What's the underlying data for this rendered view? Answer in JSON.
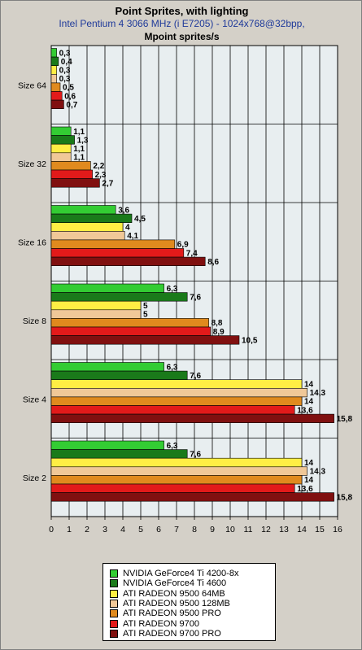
{
  "chart_data": {
    "type": "bar",
    "orientation": "horizontal",
    "title": "Point Sprites, with lighting",
    "subtitle": "Intel Pentium 4 3066 MHz (i E7205) - 1024x768@32bpp,",
    "ylabel": "Mpoint sprites/s",
    "categories": [
      "Size 64",
      "Size 32",
      "Size 16",
      "Size 8",
      "Size 4",
      "Size 2"
    ],
    "xlim": [
      0,
      16
    ],
    "xticks": [
      0,
      1,
      2,
      3,
      4,
      5,
      6,
      7,
      8,
      9,
      10,
      11,
      12,
      13,
      14,
      15,
      16
    ],
    "grid": true,
    "legend_position": "bottom",
    "series": [
      {
        "name": "NVIDIA GeForce4 Ti 4200-8x",
        "color": "#33cc33",
        "values": [
          0.3,
          1.1,
          3.6,
          6.3,
          6.3,
          6.3
        ],
        "labels": [
          "0,3",
          "1,1",
          "3,6",
          "6,3",
          "6,3",
          "6,3"
        ]
      },
      {
        "name": "NVIDIA GeForce4 Ti 4600",
        "color": "#1a7a1a",
        "values": [
          0.4,
          1.3,
          4.5,
          7.6,
          7.6,
          7.6
        ],
        "labels": [
          "0,4",
          "1,3",
          "4,5",
          "7,6",
          "7,6",
          "7,6"
        ]
      },
      {
        "name": "ATI RADEON 9500 64MB",
        "color": "#ffee44",
        "values": [
          0.3,
          1.1,
          4,
          5,
          14,
          14
        ],
        "labels": [
          "0,3",
          "1,1",
          "4",
          "5",
          "14",
          "14"
        ]
      },
      {
        "name": "ATI RADEON 9500 128MB",
        "color": "#f0c898",
        "values": [
          0.3,
          1.1,
          4.1,
          5,
          14.3,
          14.3
        ],
        "labels": [
          "0,3",
          "1,1",
          "4,1",
          "5",
          "14,3",
          "14,3"
        ]
      },
      {
        "name": "ATI RADEON 9500 PRO",
        "color": "#e08a1e",
        "values": [
          0.5,
          2.2,
          6.9,
          8.8,
          14,
          14
        ],
        "labels": [
          "0,5",
          "2,2",
          "6,9",
          "8,8",
          "14",
          "14"
        ]
      },
      {
        "name": "ATI RADEON 9700",
        "color": "#e21a1a",
        "values": [
          0.6,
          2.3,
          7.4,
          8.9,
          13.6,
          13.6
        ],
        "labels": [
          "0,6",
          "2,3",
          "7,4",
          "8,9",
          "13,6",
          "13,6"
        ]
      },
      {
        "name": "ATI RADEON 9700 PRO",
        "color": "#801010",
        "values": [
          0.7,
          2.7,
          8.6,
          10.5,
          15.8,
          15.8
        ],
        "labels": [
          "0,7",
          "2,7",
          "8,6",
          "10,5",
          "15,8",
          "15,8"
        ]
      }
    ]
  }
}
